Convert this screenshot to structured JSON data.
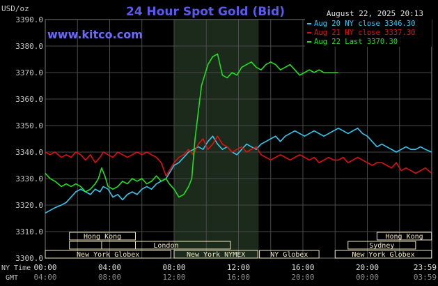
{
  "chart_data": {
    "type": "line",
    "title": "24 Hour Spot Gold (Bid)",
    "watermark": "www.kitco.com",
    "timestamp": "August 22, 2025 20:13",
    "ylabel": "USD/oz",
    "ylim": [
      3300,
      3390
    ],
    "yticks": [
      "3390.0",
      "3380.0",
      "3370.0",
      "3360.0",
      "3350.0",
      "3340.0",
      "3330.0",
      "3320.0",
      "3310.0",
      "3300.0"
    ],
    "xlim_hours": [
      0,
      24
    ],
    "xaxis_row1_label": "NY Time",
    "xaxis_row2_label": "GMT",
    "xticks_ny": [
      "00:00",
      "04:00",
      "08:00",
      "12:00",
      "16:00",
      "20:00",
      "23:59"
    ],
    "xticks_gmt": [
      "04:00",
      "08:00",
      "12:00",
      "16:00",
      "20:00",
      "00:00",
      "03:59"
    ],
    "shaded_region_hours": [
      8,
      13.25
    ],
    "grid": true,
    "legend_position": "top-right",
    "colors": {
      "series_blue": "#33c8f0",
      "series_red": "#e01010",
      "series_green": "#20e020",
      "title": "#5a5af0",
      "watermark": "#6a6aff",
      "grid": "#4a4a4a",
      "text": "#c8c8c8",
      "shade": "#1b2a1b",
      "session": "#f0e8c0"
    },
    "sessions": [
      {
        "name": "Hong Kong",
        "row": 1,
        "start": 1.5,
        "end": 5.6,
        "show_label": true
      },
      {
        "name": "",
        "row": 2,
        "start": 1.5,
        "end": 5.6,
        "show_label": false
      },
      {
        "name": "London",
        "row": 2,
        "start": 3.5,
        "end": 11.5,
        "show_label": true
      },
      {
        "name": "New York Globex",
        "row": 3,
        "start": 0,
        "end": 7.8,
        "show_label": true
      },
      {
        "name": "New York NYMEX",
        "row": 3,
        "start": 8.0,
        "end": 13.2,
        "show_label": true
      },
      {
        "name": "NY Globex",
        "row": 3,
        "start": 13.3,
        "end": 17.0,
        "show_label": true
      },
      {
        "name": "Hong Kong",
        "row": 1,
        "start": 20.6,
        "end": 23.99,
        "show_label": true
      },
      {
        "name": "Sydney",
        "row": 2,
        "start": 18.8,
        "end": 23.0,
        "show_label": true
      },
      {
        "name": "New York Globex",
        "row": 3,
        "start": 18.0,
        "end": 23.99,
        "show_label": true
      }
    ],
    "series": [
      {
        "name": "Aug 20 NY close 3346.30",
        "color": "#33c8f0",
        "x": [
          0,
          0.3,
          0.6,
          1.0,
          1.3,
          1.6,
          1.9,
          2.2,
          2.5,
          2.8,
          3.1,
          3.4,
          3.6,
          3.9,
          4.2,
          4.5,
          4.8,
          5.1,
          5.4,
          5.7,
          6.0,
          6.3,
          6.6,
          6.9,
          7.2,
          7.5,
          7.7,
          8.0,
          8.3,
          8.6,
          8.9,
          9.2,
          9.5,
          9.8,
          10.1,
          10.4,
          10.7,
          11.0,
          11.3,
          11.6,
          11.9,
          12.2,
          12.5,
          12.8,
          13.1,
          13.4,
          13.7,
          14.0,
          14.3,
          14.6,
          14.9,
          15.2,
          15.5,
          15.8,
          16.1,
          16.4,
          16.7,
          17.0,
          17.3,
          17.6,
          17.9,
          18.2,
          18.5,
          18.8,
          19.1,
          19.4,
          19.7,
          20.0,
          20.3,
          20.6,
          20.9,
          21.2,
          21.5,
          21.8,
          22.1,
          22.4,
          22.7,
          23.0,
          23.3,
          23.6,
          23.99
        ],
        "y": [
          3317,
          3318,
          3319,
          3320,
          3321,
          3323,
          3325,
          3326,
          3325,
          3324,
          3326,
          3325,
          3327,
          3326,
          3323,
          3324,
          3322,
          3324,
          3325,
          3324,
          3326,
          3327,
          3326,
          3328,
          3329,
          3330,
          3332,
          3335,
          3336,
          3338,
          3340,
          3341,
          3342,
          3341,
          3344,
          3346,
          3343,
          3341,
          3342,
          3340,
          3339,
          3341,
          3343,
          3342,
          3341,
          3343,
          3344,
          3345,
          3346,
          3344,
          3346,
          3347,
          3348,
          3347,
          3346,
          3347,
          3348,
          3347,
          3346,
          3347,
          3348,
          3349,
          3348,
          3347,
          3348,
          3349,
          3347,
          3346,
          3344,
          3342,
          3343,
          3342,
          3341,
          3340,
          3341,
          3342,
          3341,
          3341,
          3342,
          3341,
          3340
        ]
      },
      {
        "name": "Aug 21 NY close 3337.30",
        "color": "#e01010",
        "x": [
          0,
          0.3,
          0.6,
          1.0,
          1.3,
          1.6,
          1.9,
          2.2,
          2.5,
          2.8,
          3.1,
          3.4,
          3.6,
          3.9,
          4.2,
          4.5,
          4.8,
          5.1,
          5.4,
          5.7,
          6.0,
          6.3,
          6.6,
          6.9,
          7.2,
          7.5,
          7.7,
          8.0,
          8.3,
          8.6,
          8.9,
          9.2,
          9.5,
          9.8,
          10.1,
          10.4,
          10.7,
          11.0,
          11.3,
          11.6,
          11.9,
          12.2,
          12.5,
          12.8,
          13.1,
          13.4,
          13.7,
          14.0,
          14.3,
          14.6,
          14.9,
          15.2,
          15.5,
          15.8,
          16.1,
          16.4,
          16.7,
          17.0,
          17.3,
          17.6,
          17.9,
          18.2,
          18.5,
          18.8,
          19.1,
          19.4,
          19.7,
          20.0,
          20.3,
          20.6,
          20.9,
          21.2,
          21.5,
          21.8,
          22.1,
          22.4,
          22.7,
          23.0,
          23.3,
          23.6,
          23.99
        ],
        "y": [
          3340,
          3339,
          3340,
          3338,
          3339,
          3338,
          3340,
          3339,
          3337,
          3339,
          3336,
          3338,
          3340,
          3339,
          3338,
          3340,
          3339,
          3338,
          3339,
          3340,
          3339,
          3340,
          3339,
          3338,
          3336,
          3331,
          3333,
          3336,
          3338,
          3339,
          3341,
          3339,
          3343,
          3345,
          3341,
          3343,
          3346,
          3343,
          3342,
          3340,
          3341,
          3342,
          3340,
          3341,
          3342,
          3339,
          3338,
          3337,
          3338,
          3339,
          3338,
          3337,
          3338,
          3339,
          3338,
          3337,
          3338,
          3336,
          3337,
          3338,
          3337,
          3337,
          3338,
          3336,
          3337,
          3338,
          3337,
          3336,
          3335,
          3336,
          3336,
          3335,
          3334,
          3336,
          3333,
          3334,
          3333,
          3332,
          3333,
          3334,
          3332
        ]
      },
      {
        "name": "Aug 22 Last 3370.30",
        "color": "#20e020",
        "x": [
          0,
          0.3,
          0.6,
          1.0,
          1.3,
          1.6,
          1.9,
          2.2,
          2.5,
          2.8,
          3.1,
          3.3,
          3.5,
          3.7,
          3.9,
          4.2,
          4.5,
          4.8,
          5.1,
          5.4,
          5.7,
          6.0,
          6.3,
          6.6,
          6.9,
          7.2,
          7.5,
          7.7,
          8.0,
          8.3,
          8.6,
          8.9,
          9.1,
          9.3,
          9.5,
          9.7,
          9.9,
          10.1,
          10.4,
          10.7,
          11.0,
          11.3,
          11.6,
          11.9,
          12.2,
          12.5,
          12.8,
          13.1,
          13.4,
          13.7,
          14.0,
          14.3,
          14.6,
          14.9,
          15.2,
          15.5,
          15.8,
          16.1,
          16.4,
          16.7,
          17.0,
          17.3,
          17.6,
          17.9,
          18.2
        ],
        "y": [
          3332,
          3330,
          3329,
          3327,
          3328,
          3327,
          3328,
          3327,
          3325,
          3326,
          3328,
          3330,
          3334,
          3331,
          3327,
          3326,
          3327,
          3329,
          3328,
          3330,
          3329,
          3330,
          3328,
          3329,
          3331,
          3329,
          3330,
          3328,
          3326,
          3323,
          3324,
          3327,
          3330,
          3345,
          3355,
          3365,
          3369,
          3373,
          3376,
          3377,
          3369,
          3368,
          3370,
          3369,
          3372,
          3373,
          3374,
          3372,
          3371,
          3373,
          3374,
          3373,
          3371,
          3372,
          3373,
          3371,
          3369,
          3370,
          3371,
          3370,
          3371,
          3370,
          3370,
          3370,
          3370
        ]
      }
    ]
  }
}
